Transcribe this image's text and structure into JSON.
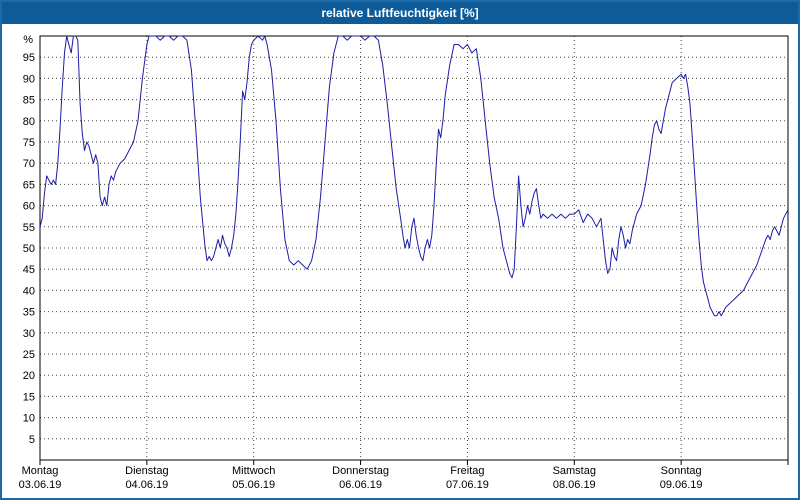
{
  "window": {
    "title": "relative Luftfeuchtigkeit [%]"
  },
  "colors": {
    "titlebar_bg": "#0d5b99",
    "titlebar_text": "#ffffff",
    "window_border": "#1f6aa5",
    "line": "#1c1ca8",
    "grid": "#444444",
    "axis": "#000000",
    "background": "#ffffff"
  },
  "chart_data": {
    "type": "line",
    "title": "relative Luftfeuchtigkeit [%]",
    "ylabel": "%",
    "ylim": [
      0,
      100
    ],
    "ytick_step": 5,
    "yticks": [
      5,
      10,
      15,
      20,
      25,
      30,
      35,
      40,
      45,
      50,
      55,
      60,
      65,
      70,
      75,
      80,
      85,
      90,
      95
    ],
    "grid": true,
    "legend": false,
    "x_unit": "hours",
    "xlim": [
      0,
      168
    ],
    "x_categories": [
      {
        "day": "Montag",
        "date": "03.06.19"
      },
      {
        "day": "Dienstag",
        "date": "04.06.19"
      },
      {
        "day": "Mittwoch",
        "date": "05.06.19"
      },
      {
        "day": "Donnerstag",
        "date": "06.06.19"
      },
      {
        "day": "Freitag",
        "date": "07.06.19"
      },
      {
        "day": "Samstag",
        "date": "08.06.19"
      },
      {
        "day": "Sonntag",
        "date": "09.06.19"
      }
    ],
    "series": [
      {
        "name": "relative Luftfeuchtigkeit",
        "points": [
          [
            0,
            55
          ],
          [
            0.5,
            57
          ],
          [
            1,
            63
          ],
          [
            1.5,
            67
          ],
          [
            2,
            66
          ],
          [
            2.5,
            65
          ],
          [
            3,
            66
          ],
          [
            3.5,
            65
          ],
          [
            4,
            70
          ],
          [
            4.5,
            78
          ],
          [
            5,
            88
          ],
          [
            5.5,
            96
          ],
          [
            6,
            100
          ],
          [
            6.5,
            98
          ],
          [
            7,
            96
          ],
          [
            7.5,
            100
          ],
          [
            8,
            100
          ],
          [
            8.5,
            99
          ],
          [
            9,
            84
          ],
          [
            9.5,
            77
          ],
          [
            10,
            73
          ],
          [
            10.5,
            75
          ],
          [
            11,
            74
          ],
          [
            11.5,
            72
          ],
          [
            12,
            70
          ],
          [
            12.5,
            72
          ],
          [
            13,
            70
          ],
          [
            13.5,
            62
          ],
          [
            14,
            60
          ],
          [
            14.5,
            62
          ],
          [
            15,
            60
          ],
          [
            15.5,
            65
          ],
          [
            16,
            67
          ],
          [
            16.5,
            66
          ],
          [
            17,
            68
          ],
          [
            18,
            70
          ],
          [
            19,
            71
          ],
          [
            20,
            73
          ],
          [
            21,
            75
          ],
          [
            22,
            80
          ],
          [
            23,
            90
          ],
          [
            24,
            98
          ],
          [
            24.5,
            100
          ],
          [
            26,
            100
          ],
          [
            27,
            99
          ],
          [
            28,
            100
          ],
          [
            29,
            100
          ],
          [
            30,
            99
          ],
          [
            31,
            100
          ],
          [
            32,
            100
          ],
          [
            33,
            99
          ],
          [
            34,
            92
          ],
          [
            35,
            78
          ],
          [
            36,
            62
          ],
          [
            37,
            51
          ],
          [
            37.5,
            47
          ],
          [
            38,
            48
          ],
          [
            38.5,
            47
          ],
          [
            39,
            48
          ],
          [
            40,
            52
          ],
          [
            40.5,
            50
          ],
          [
            41,
            53
          ],
          [
            41.5,
            51
          ],
          [
            42,
            50
          ],
          [
            42.5,
            48
          ],
          [
            43,
            50
          ],
          [
            43.5,
            53
          ],
          [
            44,
            58
          ],
          [
            44.5,
            66
          ],
          [
            45,
            76
          ],
          [
            45.5,
            87
          ],
          [
            46,
            85
          ],
          [
            46.5,
            89
          ],
          [
            47,
            95
          ],
          [
            47.5,
            98
          ],
          [
            48,
            99
          ],
          [
            49,
            100
          ],
          [
            50,
            99
          ],
          [
            50.5,
            100
          ],
          [
            51,
            98
          ],
          [
            52,
            92
          ],
          [
            53,
            80
          ],
          [
            54,
            64
          ],
          [
            55,
            52
          ],
          [
            56,
            47
          ],
          [
            57,
            46
          ],
          [
            58,
            47
          ],
          [
            59,
            46
          ],
          [
            60,
            45
          ],
          [
            61,
            47
          ],
          [
            62,
            52
          ],
          [
            63,
            62
          ],
          [
            64,
            75
          ],
          [
            65,
            88
          ],
          [
            66,
            96
          ],
          [
            67,
            100
          ],
          [
            68,
            100
          ],
          [
            69,
            99
          ],
          [
            70,
            100
          ],
          [
            71,
            100
          ],
          [
            72,
            100
          ],
          [
            73,
            99
          ],
          [
            74,
            100
          ],
          [
            75,
            100
          ],
          [
            76,
            99
          ],
          [
            77,
            93
          ],
          [
            78,
            84
          ],
          [
            79,
            74
          ],
          [
            80,
            64
          ],
          [
            81,
            57
          ],
          [
            81.5,
            53
          ],
          [
            82,
            50
          ],
          [
            82.5,
            52
          ],
          [
            83,
            50
          ],
          [
            83.5,
            55
          ],
          [
            84,
            57
          ],
          [
            84.5,
            53
          ],
          [
            85,
            50
          ],
          [
            85.5,
            48
          ],
          [
            86,
            47
          ],
          [
            86.5,
            50
          ],
          [
            87,
            52
          ],
          [
            87.5,
            50
          ],
          [
            88,
            53
          ],
          [
            88.5,
            60
          ],
          [
            89,
            70
          ],
          [
            89.5,
            78
          ],
          [
            90,
            76
          ],
          [
            90.5,
            80
          ],
          [
            91,
            86
          ],
          [
            92,
            93
          ],
          [
            93,
            98
          ],
          [
            94,
            98
          ],
          [
            95,
            97
          ],
          [
            96,
            98
          ],
          [
            97,
            96
          ],
          [
            98,
            97
          ],
          [
            99,
            90
          ],
          [
            100,
            80
          ],
          [
            101,
            70
          ],
          [
            102,
            62
          ],
          [
            103,
            57
          ],
          [
            104,
            50
          ],
          [
            105,
            46
          ],
          [
            105.5,
            44
          ],
          [
            106,
            43
          ],
          [
            106.5,
            45
          ],
          [
            107,
            55
          ],
          [
            107.5,
            67
          ],
          [
            108,
            60
          ],
          [
            108.5,
            55
          ],
          [
            109,
            57
          ],
          [
            109.5,
            60
          ],
          [
            110,
            58
          ],
          [
            110.5,
            61
          ],
          [
            111,
            63
          ],
          [
            111.5,
            64
          ],
          [
            112,
            60
          ],
          [
            112.5,
            57
          ],
          [
            113,
            58
          ],
          [
            114,
            57
          ],
          [
            115,
            58
          ],
          [
            116,
            57
          ],
          [
            117,
            58
          ],
          [
            118,
            57
          ],
          [
            119,
            58
          ],
          [
            120,
            58
          ],
          [
            121,
            59
          ],
          [
            122,
            56
          ],
          [
            123,
            58
          ],
          [
            124,
            57
          ],
          [
            125,
            55
          ],
          [
            126,
            57
          ],
          [
            126.5,
            52
          ],
          [
            127,
            47
          ],
          [
            127.5,
            44
          ],
          [
            128,
            45
          ],
          [
            128.5,
            50
          ],
          [
            129,
            48
          ],
          [
            129.5,
            47
          ],
          [
            130,
            52
          ],
          [
            130.5,
            55
          ],
          [
            131,
            53
          ],
          [
            131.5,
            50
          ],
          [
            132,
            52
          ],
          [
            132.5,
            51
          ],
          [
            133,
            54
          ],
          [
            134,
            58
          ],
          [
            135,
            60
          ],
          [
            136,
            65
          ],
          [
            137,
            72
          ],
          [
            137.5,
            76
          ],
          [
            138,
            79
          ],
          [
            138.5,
            80
          ],
          [
            139,
            78
          ],
          [
            139.5,
            77
          ],
          [
            140,
            80
          ],
          [
            140.5,
            83
          ],
          [
            141,
            85
          ],
          [
            142,
            89
          ],
          [
            143,
            90
          ],
          [
            144,
            91
          ],
          [
            144.5,
            90
          ],
          [
            145,
            91
          ],
          [
            145.5,
            88
          ],
          [
            146,
            84
          ],
          [
            146.5,
            76
          ],
          [
            147,
            68
          ],
          [
            147.5,
            60
          ],
          [
            148,
            52
          ],
          [
            148.5,
            46
          ],
          [
            149,
            42
          ],
          [
            149.5,
            40
          ],
          [
            150,
            38
          ],
          [
            150.5,
            36
          ],
          [
            151,
            35
          ],
          [
            151.5,
            34
          ],
          [
            152,
            34
          ],
          [
            152.5,
            35
          ],
          [
            153,
            34
          ],
          [
            153.5,
            35
          ],
          [
            154,
            36
          ],
          [
            155,
            37
          ],
          [
            156,
            38
          ],
          [
            157,
            39
          ],
          [
            158,
            40
          ],
          [
            159,
            42
          ],
          [
            160,
            44
          ],
          [
            161,
            46
          ],
          [
            162,
            49
          ],
          [
            163,
            52
          ],
          [
            163.5,
            53
          ],
          [
            164,
            52
          ],
          [
            164.5,
            54
          ],
          [
            165,
            55
          ],
          [
            165.5,
            54
          ],
          [
            166,
            53
          ],
          [
            166.5,
            55
          ],
          [
            167,
            57
          ],
          [
            168,
            59
          ]
        ]
      }
    ]
  }
}
